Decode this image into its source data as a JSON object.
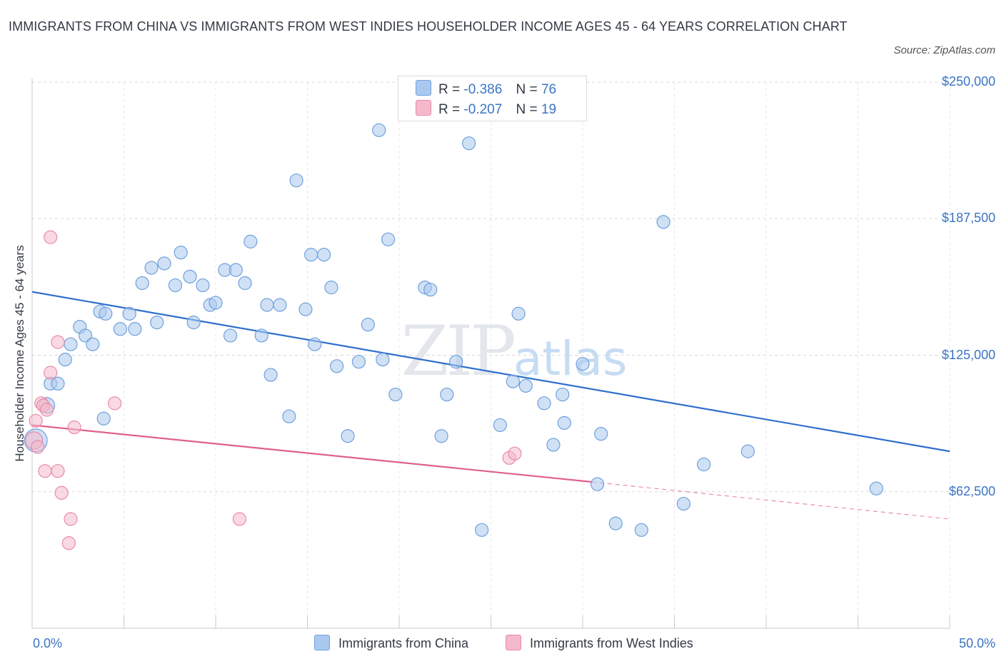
{
  "title": "IMMIGRANTS FROM CHINA VS IMMIGRANTS FROM WEST INDIES HOUSEHOLDER INCOME AGES 45 - 64 YEARS CORRELATION CHART",
  "source": "Source: ZipAtlas.com",
  "watermark": "ZIPatlas",
  "legend": {
    "china": {
      "r_label": "R =",
      "r_value": "-0.386",
      "n_label": "N =",
      "n_value": "76"
    },
    "westindies": {
      "r_label": "R =",
      "r_value": "-0.207",
      "n_label": "N =",
      "n_value": "19"
    }
  },
  "bottom_legend": {
    "china": "Immigrants from China",
    "westindies": "Immigrants from West Indies"
  },
  "colors": {
    "china_fill": "#aac8ef",
    "china_stroke": "#6fa0dc",
    "china_line": "#2f6fcc",
    "wi_fill": "#f4b9cb",
    "wi_stroke": "#e98aa8",
    "wi_line": "#e0608b",
    "axis_text": "#3b74c4",
    "grid": "#d8d8d8"
  },
  "chart_data": {
    "type": "scatter",
    "title": "IMMIGRANTS FROM CHINA VS IMMIGRANTS FROM WEST INDIES HOUSEHOLDER INCOME AGES 45 - 64 YEARS CORRELATION CHART",
    "xlabel": "",
    "ylabel": "Householder Income Ages 45 - 64 years",
    "xlim": [
      0,
      50
    ],
    "ylim": [
      0,
      250000
    ],
    "x_tick_labels": [
      "0.0%",
      "50.0%"
    ],
    "y_ticks": [
      62500,
      125000,
      187500,
      250000
    ],
    "y_tick_labels": [
      "$62,500",
      "$125,000",
      "$187,500",
      "$250,000"
    ],
    "grid": true,
    "legend_position": "top-center",
    "series": [
      {
        "name": "Immigrants from China",
        "points": [
          [
            0.2,
            86000,
            16
          ],
          [
            0.8,
            102000,
            11
          ],
          [
            1.0,
            112000,
            9
          ],
          [
            1.4,
            112000,
            9
          ],
          [
            1.8,
            123000,
            9
          ],
          [
            2.1,
            130000,
            9
          ],
          [
            2.6,
            138000,
            9
          ],
          [
            2.9,
            134000,
            9
          ],
          [
            3.3,
            130000,
            9
          ],
          [
            3.7,
            145000,
            9
          ],
          [
            3.9,
            96000,
            9
          ],
          [
            4.0,
            144000,
            9
          ],
          [
            4.8,
            137000,
            9
          ],
          [
            5.3,
            144000,
            9
          ],
          [
            5.6,
            137000,
            9
          ],
          [
            6.0,
            158000,
            9
          ],
          [
            6.5,
            165000,
            9
          ],
          [
            6.8,
            140000,
            9
          ],
          [
            7.2,
            167000,
            9
          ],
          [
            7.8,
            157000,
            9
          ],
          [
            8.1,
            172000,
            9
          ],
          [
            8.6,
            161000,
            9
          ],
          [
            8.8,
            140000,
            9
          ],
          [
            9.3,
            157000,
            9
          ],
          [
            9.7,
            148000,
            9
          ],
          [
            10.0,
            149000,
            9
          ],
          [
            10.5,
            164000,
            9
          ],
          [
            10.8,
            134000,
            9
          ],
          [
            11.1,
            164000,
            9
          ],
          [
            11.6,
            158000,
            9
          ],
          [
            11.9,
            177000,
            9
          ],
          [
            12.5,
            134000,
            9
          ],
          [
            12.8,
            148000,
            9
          ],
          [
            13.0,
            116000,
            9
          ],
          [
            13.5,
            148000,
            9
          ],
          [
            14.0,
            97000,
            9
          ],
          [
            14.4,
            205000,
            9
          ],
          [
            14.9,
            146000,
            9
          ],
          [
            15.2,
            171000,
            9
          ],
          [
            15.4,
            130000,
            9
          ],
          [
            15.9,
            171000,
            9
          ],
          [
            16.3,
            156000,
            9
          ],
          [
            16.6,
            120000,
            9
          ],
          [
            17.2,
            88000,
            9
          ],
          [
            17.8,
            122000,
            9
          ],
          [
            18.3,
            139000,
            9
          ],
          [
            18.9,
            228000,
            9
          ],
          [
            19.1,
            123000,
            9
          ],
          [
            19.4,
            178000,
            9
          ],
          [
            19.8,
            107000,
            9
          ],
          [
            20.6,
            241000,
            9
          ],
          [
            21.4,
            156000,
            9
          ],
          [
            21.7,
            155000,
            9
          ],
          [
            22.3,
            88000,
            9
          ],
          [
            22.6,
            107000,
            9
          ],
          [
            23.1,
            122000,
            9
          ],
          [
            23.8,
            222000,
            9
          ],
          [
            24.5,
            45000,
            9
          ],
          [
            25.5,
            93000,
            9
          ],
          [
            26.2,
            113000,
            9
          ],
          [
            26.5,
            144000,
            9
          ],
          [
            26.9,
            111000,
            9
          ],
          [
            27.9,
            103000,
            9
          ],
          [
            28.4,
            84000,
            9
          ],
          [
            28.9,
            107000,
            9
          ],
          [
            29.0,
            94000,
            9
          ],
          [
            30.0,
            121000,
            9
          ],
          [
            30.8,
            66000,
            9
          ],
          [
            31.0,
            89000,
            9
          ],
          [
            31.8,
            48000,
            9
          ],
          [
            33.2,
            45000,
            9
          ],
          [
            34.4,
            186000,
            9
          ],
          [
            35.5,
            57000,
            9
          ],
          [
            36.6,
            75000,
            9
          ],
          [
            39.0,
            81000,
            9
          ],
          [
            46.0,
            64000,
            9
          ]
        ],
        "trend": {
          "x0": 0.0,
          "y0": 154000,
          "x1": 50.0,
          "y1": 81000
        }
      },
      {
        "name": "Immigrants from West Indies",
        "points": [
          [
            0.1,
            86000,
            12
          ],
          [
            0.2,
            95000,
            9
          ],
          [
            0.3,
            83000,
            9
          ],
          [
            0.5,
            103000,
            9
          ],
          [
            0.6,
            102000,
            9
          ],
          [
            0.7,
            72000,
            9
          ],
          [
            0.8,
            100000,
            9
          ],
          [
            1.0,
            179000,
            9
          ],
          [
            1.0,
            117000,
            9
          ],
          [
            1.4,
            131000,
            9
          ],
          [
            1.4,
            72000,
            9
          ],
          [
            1.6,
            62000,
            9
          ],
          [
            2.0,
            39000,
            9
          ],
          [
            2.1,
            50000,
            9
          ],
          [
            2.3,
            92000,
            9
          ],
          [
            4.5,
            103000,
            9
          ],
          [
            11.3,
            50000,
            9
          ],
          [
            26.0,
            78000,
            9
          ],
          [
            26.3,
            80000,
            9
          ]
        ],
        "trend": {
          "x0": 0.0,
          "y0": 93000,
          "x1": 30.5,
          "y1": 67000
        },
        "trend_extension": {
          "x0": 30.5,
          "y0": 67000,
          "x1": 50.0,
          "y1": 50000
        }
      }
    ]
  }
}
